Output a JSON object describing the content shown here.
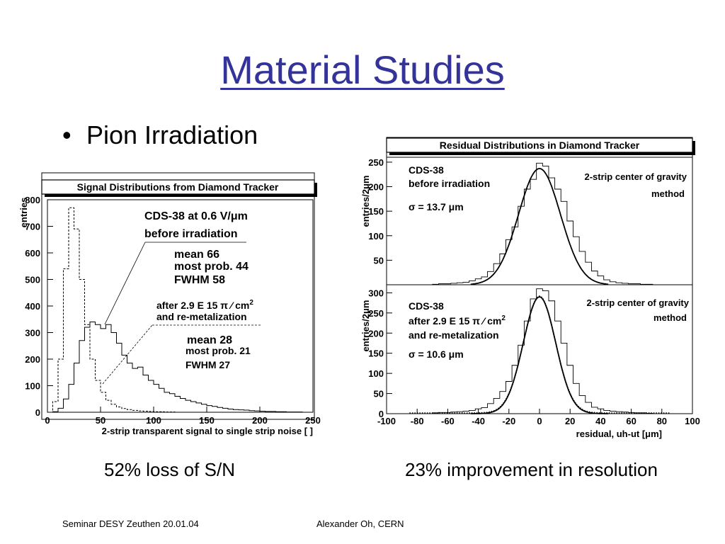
{
  "title": "Material Studies",
  "bullet": "Pion Irradiation",
  "captions": {
    "left": "52% loss of S/N",
    "right": "23% improvement in resolution"
  },
  "footer": {
    "left": "Seminar DESY Zeuthen 20.01.04",
    "center": "Alexander Oh, CERN"
  },
  "colors": {
    "title": "#333399"
  },
  "chart_data": [
    {
      "type": "histogram",
      "title": "Signal Distributions from Diamond Tracker",
      "xlabel": "2-strip transparent signal to single strip noise [ ]",
      "ylabel": "entries",
      "xlim": [
        0,
        250
      ],
      "ylim": [
        0,
        800
      ],
      "xticks": [
        "0",
        "50",
        "100",
        "150",
        "200",
        "250"
      ],
      "yticks": [
        "0",
        "100",
        "200",
        "300",
        "400",
        "500",
        "600",
        "700",
        "800"
      ],
      "annotations": {
        "a1": "CDS-38 at 0.6 V/μm",
        "a2": "before irradiation",
        "a3": "mean 66",
        "a4": "most prob. 44",
        "a5": "FWHM 58",
        "a6": "after 2.9 E 15 π ⁄ cm",
        "a6sup": "2",
        "a7": "and re-metalization",
        "a8": "mean 28",
        "a9": "most prob. 21",
        "a10": "FWHM  27"
      },
      "series": [
        {
          "name": "before irradiation",
          "style": "solid",
          "x": [
            0,
            5,
            10,
            15,
            20,
            25,
            30,
            35,
            40,
            45,
            50,
            55,
            60,
            65,
            70,
            75,
            80,
            85,
            90,
            95,
            100,
            105,
            110,
            115,
            120,
            125,
            130,
            135,
            140,
            145,
            150,
            155,
            160,
            165,
            170,
            175,
            180,
            185,
            190,
            195,
            200,
            205,
            210,
            215,
            220,
            225,
            230,
            235,
            240,
            245
          ],
          "values": [
            0,
            2,
            15,
            50,
            105,
            185,
            270,
            320,
            340,
            330,
            315,
            330,
            300,
            260,
            215,
            185,
            165,
            170,
            140,
            120,
            105,
            90,
            75,
            70,
            60,
            52,
            45,
            40,
            35,
            30,
            25,
            22,
            18,
            15,
            12,
            10,
            9,
            8,
            6,
            5,
            4,
            3,
            3,
            2,
            2,
            1,
            1,
            1,
            0,
            0
          ]
        },
        {
          "name": "after 2.9 E 15 π/cm2",
          "style": "dashed",
          "x": [
            0,
            5,
            10,
            15,
            20,
            25,
            30,
            35,
            40,
            45,
            50,
            55,
            60,
            65,
            70,
            75,
            80,
            85,
            90,
            95,
            100,
            105,
            110,
            115,
            120
          ],
          "values": [
            0,
            40,
            200,
            540,
            770,
            690,
            500,
            330,
            200,
            120,
            75,
            45,
            30,
            20,
            14,
            10,
            7,
            5,
            4,
            3,
            2,
            2,
            1,
            1,
            0
          ]
        }
      ]
    },
    {
      "type": "histogram",
      "title": "Residual Distributions in Diamond Tracker",
      "xlabel": "residual, uh-ut [μm]",
      "ylabel": "entries/2μm",
      "shared_xticks": [
        "-100",
        "-80",
        "-60",
        "-40",
        "-20",
        "0",
        "20",
        "40",
        "60",
        "80",
        "100"
      ],
      "panels": [
        {
          "xlim": [
            -100,
            100
          ],
          "ylim": [
            0,
            260
          ],
          "yticks": [
            "50",
            "100",
            "150",
            "200",
            "250"
          ],
          "annotations": {
            "a1": "CDS-38",
            "a2": "before irradiation",
            "a3": "σ = 13.7 μm",
            "a4": "2-strip center of gravity",
            "a5": "method"
          },
          "fit": {
            "amplitude": 237,
            "mean": 0,
            "sigma": 13.7
          },
          "hist_x": [
            -70,
            -66,
            -62,
            -58,
            -54,
            -50,
            -46,
            -42,
            -38,
            -34,
            -30,
            -26,
            -22,
            -18,
            -14,
            -10,
            -6,
            -2,
            2,
            6,
            10,
            14,
            18,
            22,
            26,
            30,
            34,
            38,
            42,
            46,
            50,
            54,
            58,
            62,
            66,
            70
          ],
          "hist_values": [
            1,
            2,
            2,
            3,
            4,
            5,
            8,
            12,
            16,
            27,
            43,
            63,
            92,
            118,
            160,
            195,
            215,
            248,
            242,
            218,
            195,
            170,
            130,
            98,
            68,
            46,
            28,
            18,
            10,
            6,
            4,
            3,
            2,
            2,
            1,
            1
          ]
        },
        {
          "xlim": [
            -100,
            100
          ],
          "ylim": [
            0,
            320
          ],
          "yticks": [
            "0",
            "50",
            "100",
            "150",
            "200",
            "250",
            "300"
          ],
          "annotations": {
            "a1": "CDS-38",
            "a2": "after 2.9 E 15 π ⁄ cm",
            "a2sup": "2",
            "a3": "and re-metalization",
            "a4": "σ = 10.6 μm",
            "a5": "2-strip center of gravity",
            "a6": "method"
          },
          "fit": {
            "amplitude": 290,
            "mean": 0,
            "sigma": 10.6
          },
          "hist_x": [
            -70,
            -66,
            -62,
            -58,
            -54,
            -50,
            -46,
            -42,
            -38,
            -34,
            -30,
            -26,
            -22,
            -18,
            -14,
            -10,
            -6,
            -2,
            2,
            6,
            10,
            14,
            18,
            22,
            26,
            30,
            34,
            38,
            42,
            46,
            50,
            54,
            58,
            62,
            66,
            70
          ],
          "hist_values": [
            2,
            3,
            3,
            4,
            5,
            6,
            8,
            12,
            15,
            25,
            38,
            55,
            80,
            120,
            170,
            230,
            285,
            310,
            305,
            280,
            230,
            175,
            120,
            75,
            45,
            28,
            16,
            12,
            8,
            6,
            5,
            4,
            3,
            2,
            2,
            1
          ]
        }
      ]
    }
  ]
}
